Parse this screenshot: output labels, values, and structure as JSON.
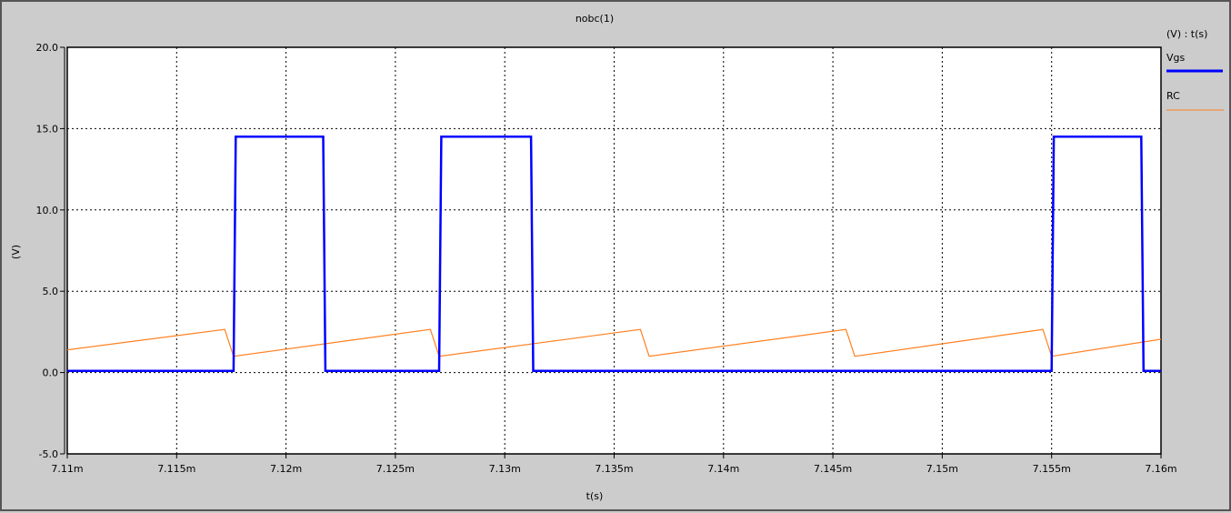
{
  "window": {
    "title": "nobc(1)"
  },
  "legend": {
    "header": "(V) : t(s)",
    "items": [
      {
        "name": "Vgs",
        "color": "#0000ff"
      },
      {
        "name": "RC",
        "color": "#ff8020"
      }
    ]
  },
  "chart_data": {
    "type": "line",
    "title": "nobc(1)",
    "xlabel": "t(s)",
    "ylabel": "(V)",
    "xlim": [
      0.00711,
      0.00716
    ],
    "ylim": [
      -5,
      20
    ],
    "grid": true,
    "legend_position": "right",
    "x_ticks": [
      {
        "value": 0.00711,
        "label": "7.11m"
      },
      {
        "value": 0.007115,
        "label": "7.115m"
      },
      {
        "value": 0.00712,
        "label": "7.12m"
      },
      {
        "value": 0.007125,
        "label": "7.125m"
      },
      {
        "value": 0.00713,
        "label": "7.13m"
      },
      {
        "value": 0.007135,
        "label": "7.135m"
      },
      {
        "value": 0.00714,
        "label": "7.14m"
      },
      {
        "value": 0.007145,
        "label": "7.145m"
      },
      {
        "value": 0.00715,
        "label": "7.15m"
      },
      {
        "value": 0.007155,
        "label": "7.155m"
      },
      {
        "value": 0.00716,
        "label": "7.16m"
      }
    ],
    "y_ticks": [
      {
        "value": 20,
        "label": "20.0"
      },
      {
        "value": 15,
        "label": "15.0"
      },
      {
        "value": 10,
        "label": "10.0"
      },
      {
        "value": 5,
        "label": "5.0"
      },
      {
        "value": 0,
        "label": "0.0"
      },
      {
        "value": -5,
        "label": "-5.0"
      }
    ],
    "series": [
      {
        "name": "Vgs",
        "color": "#0000ff",
        "x": [
          0.00711,
          0.0071176,
          0.0071177,
          0.0071217,
          0.0071218,
          0.007127,
          0.0071271,
          0.0071312,
          0.0071313,
          0.007155,
          0.0071551,
          0.0071591,
          0.0071592,
          0.00716
        ],
        "y": [
          0.1,
          0.1,
          14.5,
          14.5,
          0.1,
          0.1,
          14.5,
          14.5,
          0.1,
          0.1,
          14.5,
          14.5,
          0.1,
          0.1
        ]
      },
      {
        "name": "RC",
        "color": "#ff8020",
        "x": [
          0.00711,
          0.0071172,
          0.0071176,
          0.0071266,
          0.007127,
          0.0071362,
          0.0071366,
          0.0071456,
          0.007146,
          0.0071546,
          0.007155,
          0.00716
        ],
        "y": [
          1.4,
          2.65,
          1.0,
          2.65,
          1.0,
          2.65,
          1.0,
          2.65,
          1.0,
          2.65,
          1.0,
          2.05
        ]
      }
    ]
  }
}
